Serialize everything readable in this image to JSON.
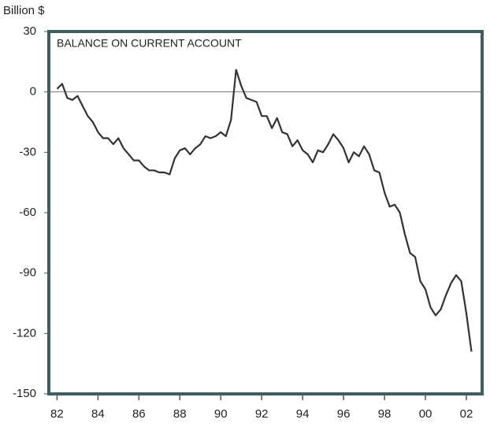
{
  "chart_data": {
    "type": "line",
    "title": "BALANCE ON CURRENT ACCOUNT",
    "y_label": "Billion $",
    "x": [
      1982,
      1982.25,
      1982.5,
      1982.75,
      1983,
      1983.25,
      1983.5,
      1983.75,
      1984,
      1984.25,
      1984.5,
      1984.75,
      1985,
      1985.25,
      1985.5,
      1985.75,
      1986,
      1986.25,
      1986.5,
      1986.75,
      1987,
      1987.25,
      1987.5,
      1987.75,
      1988,
      1988.25,
      1988.5,
      1988.75,
      1989,
      1989.25,
      1989.5,
      1989.75,
      1990,
      1990.25,
      1990.5,
      1990.75,
      1991,
      1991.25,
      1991.5,
      1991.75,
      1992,
      1992.25,
      1992.5,
      1992.75,
      1993,
      1993.25,
      1993.5,
      1993.75,
      1994,
      1994.25,
      1994.5,
      1994.75,
      1995,
      1995.25,
      1995.5,
      1995.75,
      1996,
      1996.25,
      1996.5,
      1996.75,
      1997,
      1997.25,
      1997.5,
      1997.75,
      1998,
      1998.25,
      1998.5,
      1998.75,
      1999,
      1999.25,
      1999.5,
      1999.75,
      2000,
      2000.25,
      2000.5,
      2000.75,
      2001,
      2001.25,
      2001.5,
      2001.75,
      2002,
      2002.25
    ],
    "values": [
      1.5,
      4,
      -3,
      -4,
      -2,
      -7,
      -12,
      -15,
      -20,
      -23,
      -23,
      -26,
      -23,
      -28,
      -31,
      -34,
      -34,
      -37,
      -39,
      -39,
      -40,
      -40,
      -41,
      -33,
      -29,
      -28,
      -31,
      -28,
      -26,
      -22,
      -23,
      -22,
      -20,
      -22,
      -14,
      11,
      3,
      -3,
      -4,
      -5,
      -12,
      -12,
      -18,
      -13,
      -20,
      -21,
      -27,
      -24,
      -29,
      -31,
      -35,
      -29,
      -30,
      -26,
      -21,
      -24,
      -28,
      -35,
      -30,
      -32,
      -27,
      -31,
      -39,
      -40,
      -50,
      -57,
      -56,
      -60,
      -71,
      -80,
      -82,
      -94,
      -98,
      -107,
      -111,
      -108,
      -101,
      -95,
      -91,
      -94,
      -110,
      -129
    ],
    "color": "#333333",
    "frame_color": "#3f5f5f",
    "xlim": [
      1981.6,
      2002.77
    ],
    "xticks": [
      {
        "value": 1982,
        "label": "82"
      },
      {
        "value": 1984,
        "label": "84"
      },
      {
        "value": 1986,
        "label": "86"
      },
      {
        "value": 1988,
        "label": "88"
      },
      {
        "value": 1990,
        "label": "90"
      },
      {
        "value": 1992,
        "label": "92"
      },
      {
        "value": 1994,
        "label": "94"
      },
      {
        "value": 1996,
        "label": "96"
      },
      {
        "value": 1998,
        "label": "98"
      },
      {
        "value": 2000,
        "label": "00"
      },
      {
        "value": 2002,
        "label": "02"
      }
    ],
    "ylim": [
      -150,
      30
    ],
    "yticks": [
      30,
      0,
      -30,
      -60,
      -90,
      -120,
      -150
    ],
    "zero_line": true
  }
}
